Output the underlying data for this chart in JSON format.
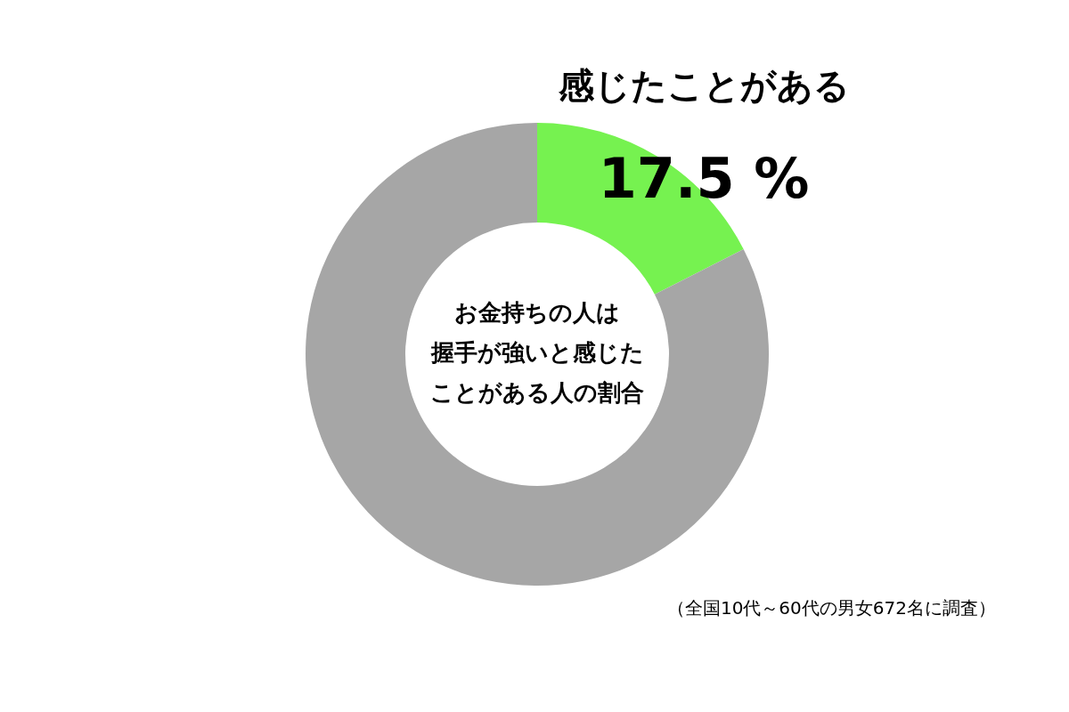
{
  "chart_data": {
    "type": "donut",
    "title": "お金持ちの人は握手が強いと感じたことがある人の割合",
    "categories": [
      "感じたことがある",
      null
    ],
    "values": [
      17.5,
      82.5
    ],
    "colors": [
      "#76f250",
      "#a6a6a6"
    ],
    "value_labels": [
      "17.5 %",
      null
    ],
    "annotations": [
      "（全国10代～60代の男女672名に調査）"
    ]
  }
}
